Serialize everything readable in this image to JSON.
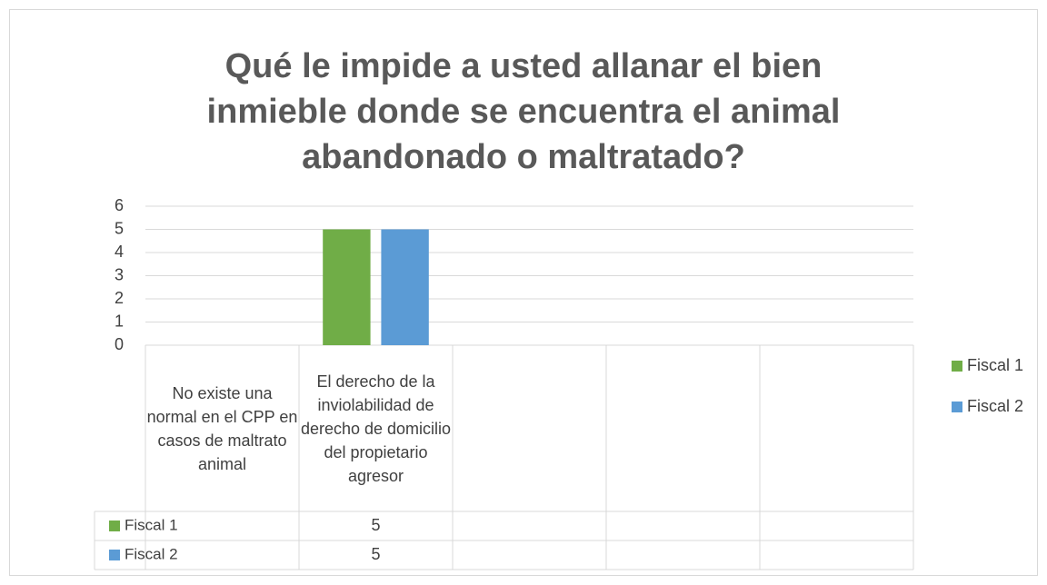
{
  "chart_data": {
    "type": "bar",
    "title": "Qué le impide a usted allanar el bien inmieble donde se encuentra el animal abandonado o maltratado?",
    "categories": [
      "No existe una normal en el CPP en casos de maltrato animal",
      "El derecho de la inviolabilidad de derecho de domicilio del propietario agresor",
      null,
      null,
      null
    ],
    "series": [
      {
        "name": "Fiscal 1",
        "color": "#70ad47",
        "values": [
          null,
          5,
          null,
          null,
          null
        ]
      },
      {
        "name": "Fiscal 2",
        "color": "#5b9bd5",
        "values": [
          null,
          5,
          null,
          null,
          null
        ]
      }
    ],
    "ylim": [
      0,
      6
    ],
    "yticks": [
      0,
      1,
      2,
      3,
      4,
      5,
      6
    ],
    "grid": true,
    "legend": "right",
    "data_table": true
  }
}
